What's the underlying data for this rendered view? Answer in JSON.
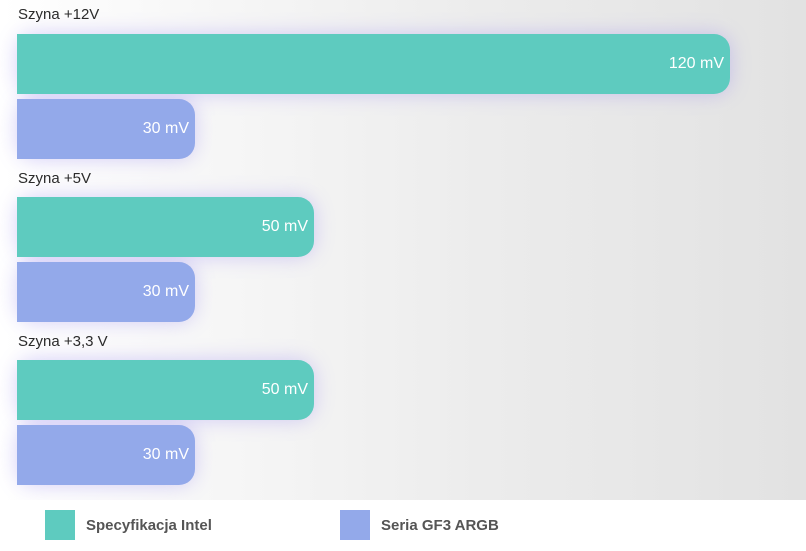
{
  "chart_data": {
    "type": "bar",
    "orientation": "horizontal",
    "categories": [
      "Szyna +12V",
      "Szyna +5V",
      "Szyna +3,3 V"
    ],
    "series": [
      {
        "name": "Specyfikacja Intel",
        "values": [
          120,
          50,
          50
        ],
        "labels": [
          "120 mV",
          "50 mV",
          "50 mV"
        ],
        "color": "#5ecbbf"
      },
      {
        "name": "Seria GF3 ARGB",
        "values": [
          30,
          30,
          30
        ],
        "labels": [
          "30 mV",
          "30 mV",
          "30 mV"
        ],
        "color": "#93a9ea"
      }
    ],
    "grid": false,
    "legend_position": "bottom"
  }
}
